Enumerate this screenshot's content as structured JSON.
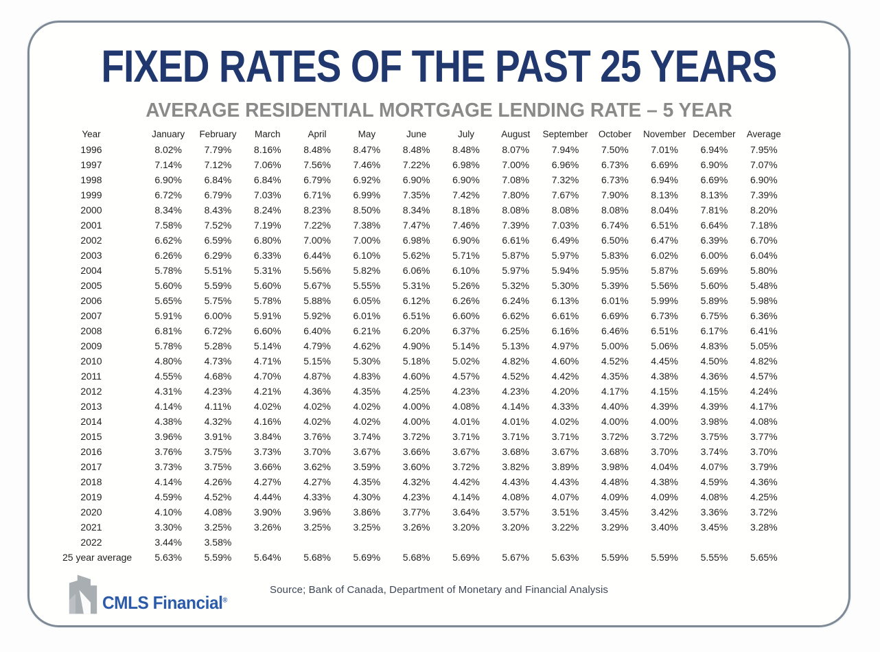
{
  "header": {
    "title": "FIXED RATES OF THE PAST 25 YEARS",
    "subtitle": "AVERAGE RESIDENTIAL MORTGAGE LENDING RATE – 5 YEAR"
  },
  "footer": {
    "logo_text": "CMLS Financial",
    "logo_mark": "®",
    "source_note": "Source; Bank of Canada, Department of Monetary and Financial Analysis"
  },
  "colors": {
    "title": "#21386e",
    "subtitle": "#8a8a8a",
    "logo_blue": "#2b5ba8",
    "card_border": "#7d8a96",
    "table_text": "#1e1e1e"
  },
  "chart_data": {
    "type": "table",
    "title": "FIXED RATES OF THE PAST 25 YEARS",
    "subtitle": "AVERAGE RESIDENTIAL MORTGAGE LENDING RATE – 5 YEAR",
    "columns": [
      "Year",
      "January",
      "February",
      "March",
      "April",
      "May",
      "June",
      "July",
      "August",
      "September",
      "October",
      "November",
      "December",
      "Average"
    ],
    "rows": [
      [
        "1996",
        "8.02%",
        "7.79%",
        "8.16%",
        "8.48%",
        "8.47%",
        "8.48%",
        "8.48%",
        "8.07%",
        "7.94%",
        "7.50%",
        "7.01%",
        "6.94%",
        "7.95%"
      ],
      [
        "1997",
        "7.14%",
        "7.12%",
        "7.06%",
        "7.56%",
        "7.46%",
        "7.22%",
        "6.98%",
        "7.00%",
        "6.96%",
        "6.73%",
        "6.69%",
        "6.90%",
        "7.07%"
      ],
      [
        "1998",
        "6.90%",
        "6.84%",
        "6.84%",
        "6.79%",
        "6.92%",
        "6.90%",
        "6.90%",
        "7.08%",
        "7.32%",
        "6.73%",
        "6.94%",
        "6.69%",
        "6.90%"
      ],
      [
        "1999",
        "6.72%",
        "6.79%",
        "7.03%",
        "6.71%",
        "6.99%",
        "7.35%",
        "7.42%",
        "7.80%",
        "7.67%",
        "7.90%",
        "8.13%",
        "8.13%",
        "7.39%"
      ],
      [
        "2000",
        "8.34%",
        "8.43%",
        "8.24%",
        "8.23%",
        "8.50%",
        "8.34%",
        "8.18%",
        "8.08%",
        "8.08%",
        "8.08%",
        "8.04%",
        "7.81%",
        "8.20%"
      ],
      [
        "2001",
        "7.58%",
        "7.52%",
        "7.19%",
        "7.22%",
        "7.38%",
        "7.47%",
        "7.46%",
        "7.39%",
        "7.03%",
        "6.74%",
        "6.51%",
        "6.64%",
        "7.18%"
      ],
      [
        "2002",
        "6.62%",
        "6.59%",
        "6.80%",
        "7.00%",
        "7.00%",
        "6.98%",
        "6.90%",
        "6.61%",
        "6.49%",
        "6.50%",
        "6.47%",
        "6.39%",
        "6.70%"
      ],
      [
        "2003",
        "6.26%",
        "6.29%",
        "6.33%",
        "6.44%",
        "6.10%",
        "5.62%",
        "5.71%",
        "5.87%",
        "5.97%",
        "5.83%",
        "6.02%",
        "6.00%",
        "6.04%"
      ],
      [
        "2004",
        "5.78%",
        "5.51%",
        "5.31%",
        "5.56%",
        "5.82%",
        "6.06%",
        "6.10%",
        "5.97%",
        "5.94%",
        "5.95%",
        "5.87%",
        "5.69%",
        "5.80%"
      ],
      [
        "2005",
        "5.60%",
        "5.59%",
        "5.60%",
        "5.67%",
        "5.55%",
        "5.31%",
        "5.26%",
        "5.32%",
        "5.30%",
        "5.39%",
        "5.56%",
        "5.60%",
        "5.48%"
      ],
      [
        "2006",
        "5.65%",
        "5.75%",
        "5.78%",
        "5.88%",
        "6.05%",
        "6.12%",
        "6.26%",
        "6.24%",
        "6.13%",
        "6.01%",
        "5.99%",
        "5.89%",
        "5.98%"
      ],
      [
        "2007",
        "5.91%",
        "6.00%",
        "5.91%",
        "5.92%",
        "6.01%",
        "6.51%",
        "6.60%",
        "6.62%",
        "6.61%",
        "6.69%",
        "6.73%",
        "6.75%",
        "6.36%"
      ],
      [
        "2008",
        "6.81%",
        "6.72%",
        "6.60%",
        "6.40%",
        "6.21%",
        "6.20%",
        "6.37%",
        "6.25%",
        "6.16%",
        "6.46%",
        "6.51%",
        "6.17%",
        "6.41%"
      ],
      [
        "2009",
        "5.78%",
        "5.28%",
        "5.14%",
        "4.79%",
        "4.62%",
        "4.90%",
        "5.14%",
        "5.13%",
        "4.97%",
        "5.00%",
        "5.06%",
        "4.83%",
        "5.05%"
      ],
      [
        "2010",
        "4.80%",
        "4.73%",
        "4.71%",
        "5.15%",
        "5.30%",
        "5.18%",
        "5.02%",
        "4.82%",
        "4.60%",
        "4.52%",
        "4.45%",
        "4.50%",
        "4.82%"
      ],
      [
        "2011",
        "4.55%",
        "4.68%",
        "4.70%",
        "4.87%",
        "4.83%",
        "4.60%",
        "4.57%",
        "4.52%",
        "4.42%",
        "4.35%",
        "4.38%",
        "4.36%",
        "4.57%"
      ],
      [
        "2012",
        "4.31%",
        "4.23%",
        "4.21%",
        "4.36%",
        "4.35%",
        "4.25%",
        "4.23%",
        "4.23%",
        "4.20%",
        "4.17%",
        "4.15%",
        "4.15%",
        "4.24%"
      ],
      [
        "2013",
        "4.14%",
        "4.11%",
        "4.02%",
        "4.02%",
        "4.02%",
        "4.00%",
        "4.08%",
        "4.14%",
        "4.33%",
        "4.40%",
        "4.39%",
        "4.39%",
        "4.17%"
      ],
      [
        "2014",
        "4.38%",
        "4.32%",
        "4.16%",
        "4.02%",
        "4.02%",
        "4.00%",
        "4.01%",
        "4.01%",
        "4.02%",
        "4.00%",
        "4.00%",
        "3.98%",
        "4.08%"
      ],
      [
        "2015",
        "3.96%",
        "3.91%",
        "3.84%",
        "3.76%",
        "3.74%",
        "3.72%",
        "3.71%",
        "3.71%",
        "3.71%",
        "3.72%",
        "3.72%",
        "3.75%",
        "3.77%"
      ],
      [
        "2016",
        "3.76%",
        "3.75%",
        "3.73%",
        "3.70%",
        "3.67%",
        "3.66%",
        "3.67%",
        "3.68%",
        "3.67%",
        "3.68%",
        "3.70%",
        "3.74%",
        "3.70%"
      ],
      [
        "2017",
        "3.73%",
        "3.75%",
        "3.66%",
        "3.62%",
        "3.59%",
        "3.60%",
        "3.72%",
        "3.82%",
        "3.89%",
        "3.98%",
        "4.04%",
        "4.07%",
        "3.79%"
      ],
      [
        "2018",
        "4.14%",
        "4.26%",
        "4.27%",
        "4.27%",
        "4.35%",
        "4.32%",
        "4.42%",
        "4.43%",
        "4.43%",
        "4.48%",
        "4.38%",
        "4.59%",
        "4.36%"
      ],
      [
        "2019",
        "4.59%",
        "4.52%",
        "4.44%",
        "4.33%",
        "4.30%",
        "4.23%",
        "4.14%",
        "4.08%",
        "4.07%",
        "4.09%",
        "4.09%",
        "4.08%",
        "4.25%"
      ],
      [
        "2020",
        "4.10%",
        "4.08%",
        "3.90%",
        "3.96%",
        "3.86%",
        "3.77%",
        "3.64%",
        "3.57%",
        "3.51%",
        "3.45%",
        "3.42%",
        "3.36%",
        "3.72%"
      ],
      [
        "2021",
        "3.30%",
        "3.25%",
        "3.26%",
        "3.25%",
        "3.25%",
        "3.26%",
        "3.20%",
        "3.20%",
        "3.22%",
        "3.29%",
        "3.40%",
        "3.45%",
        "3.28%"
      ],
      [
        "2022",
        "3.44%",
        "3.58%",
        "",
        "",
        "",
        "",
        "",
        "",
        "",
        "",
        "",
        "",
        ""
      ],
      [
        "25 year average",
        "5.63%",
        "5.59%",
        "5.64%",
        "5.68%",
        "5.69%",
        "5.68%",
        "5.69%",
        "5.67%",
        "5.63%",
        "5.59%",
        "5.59%",
        "5.55%",
        "5.65%"
      ]
    ]
  }
}
